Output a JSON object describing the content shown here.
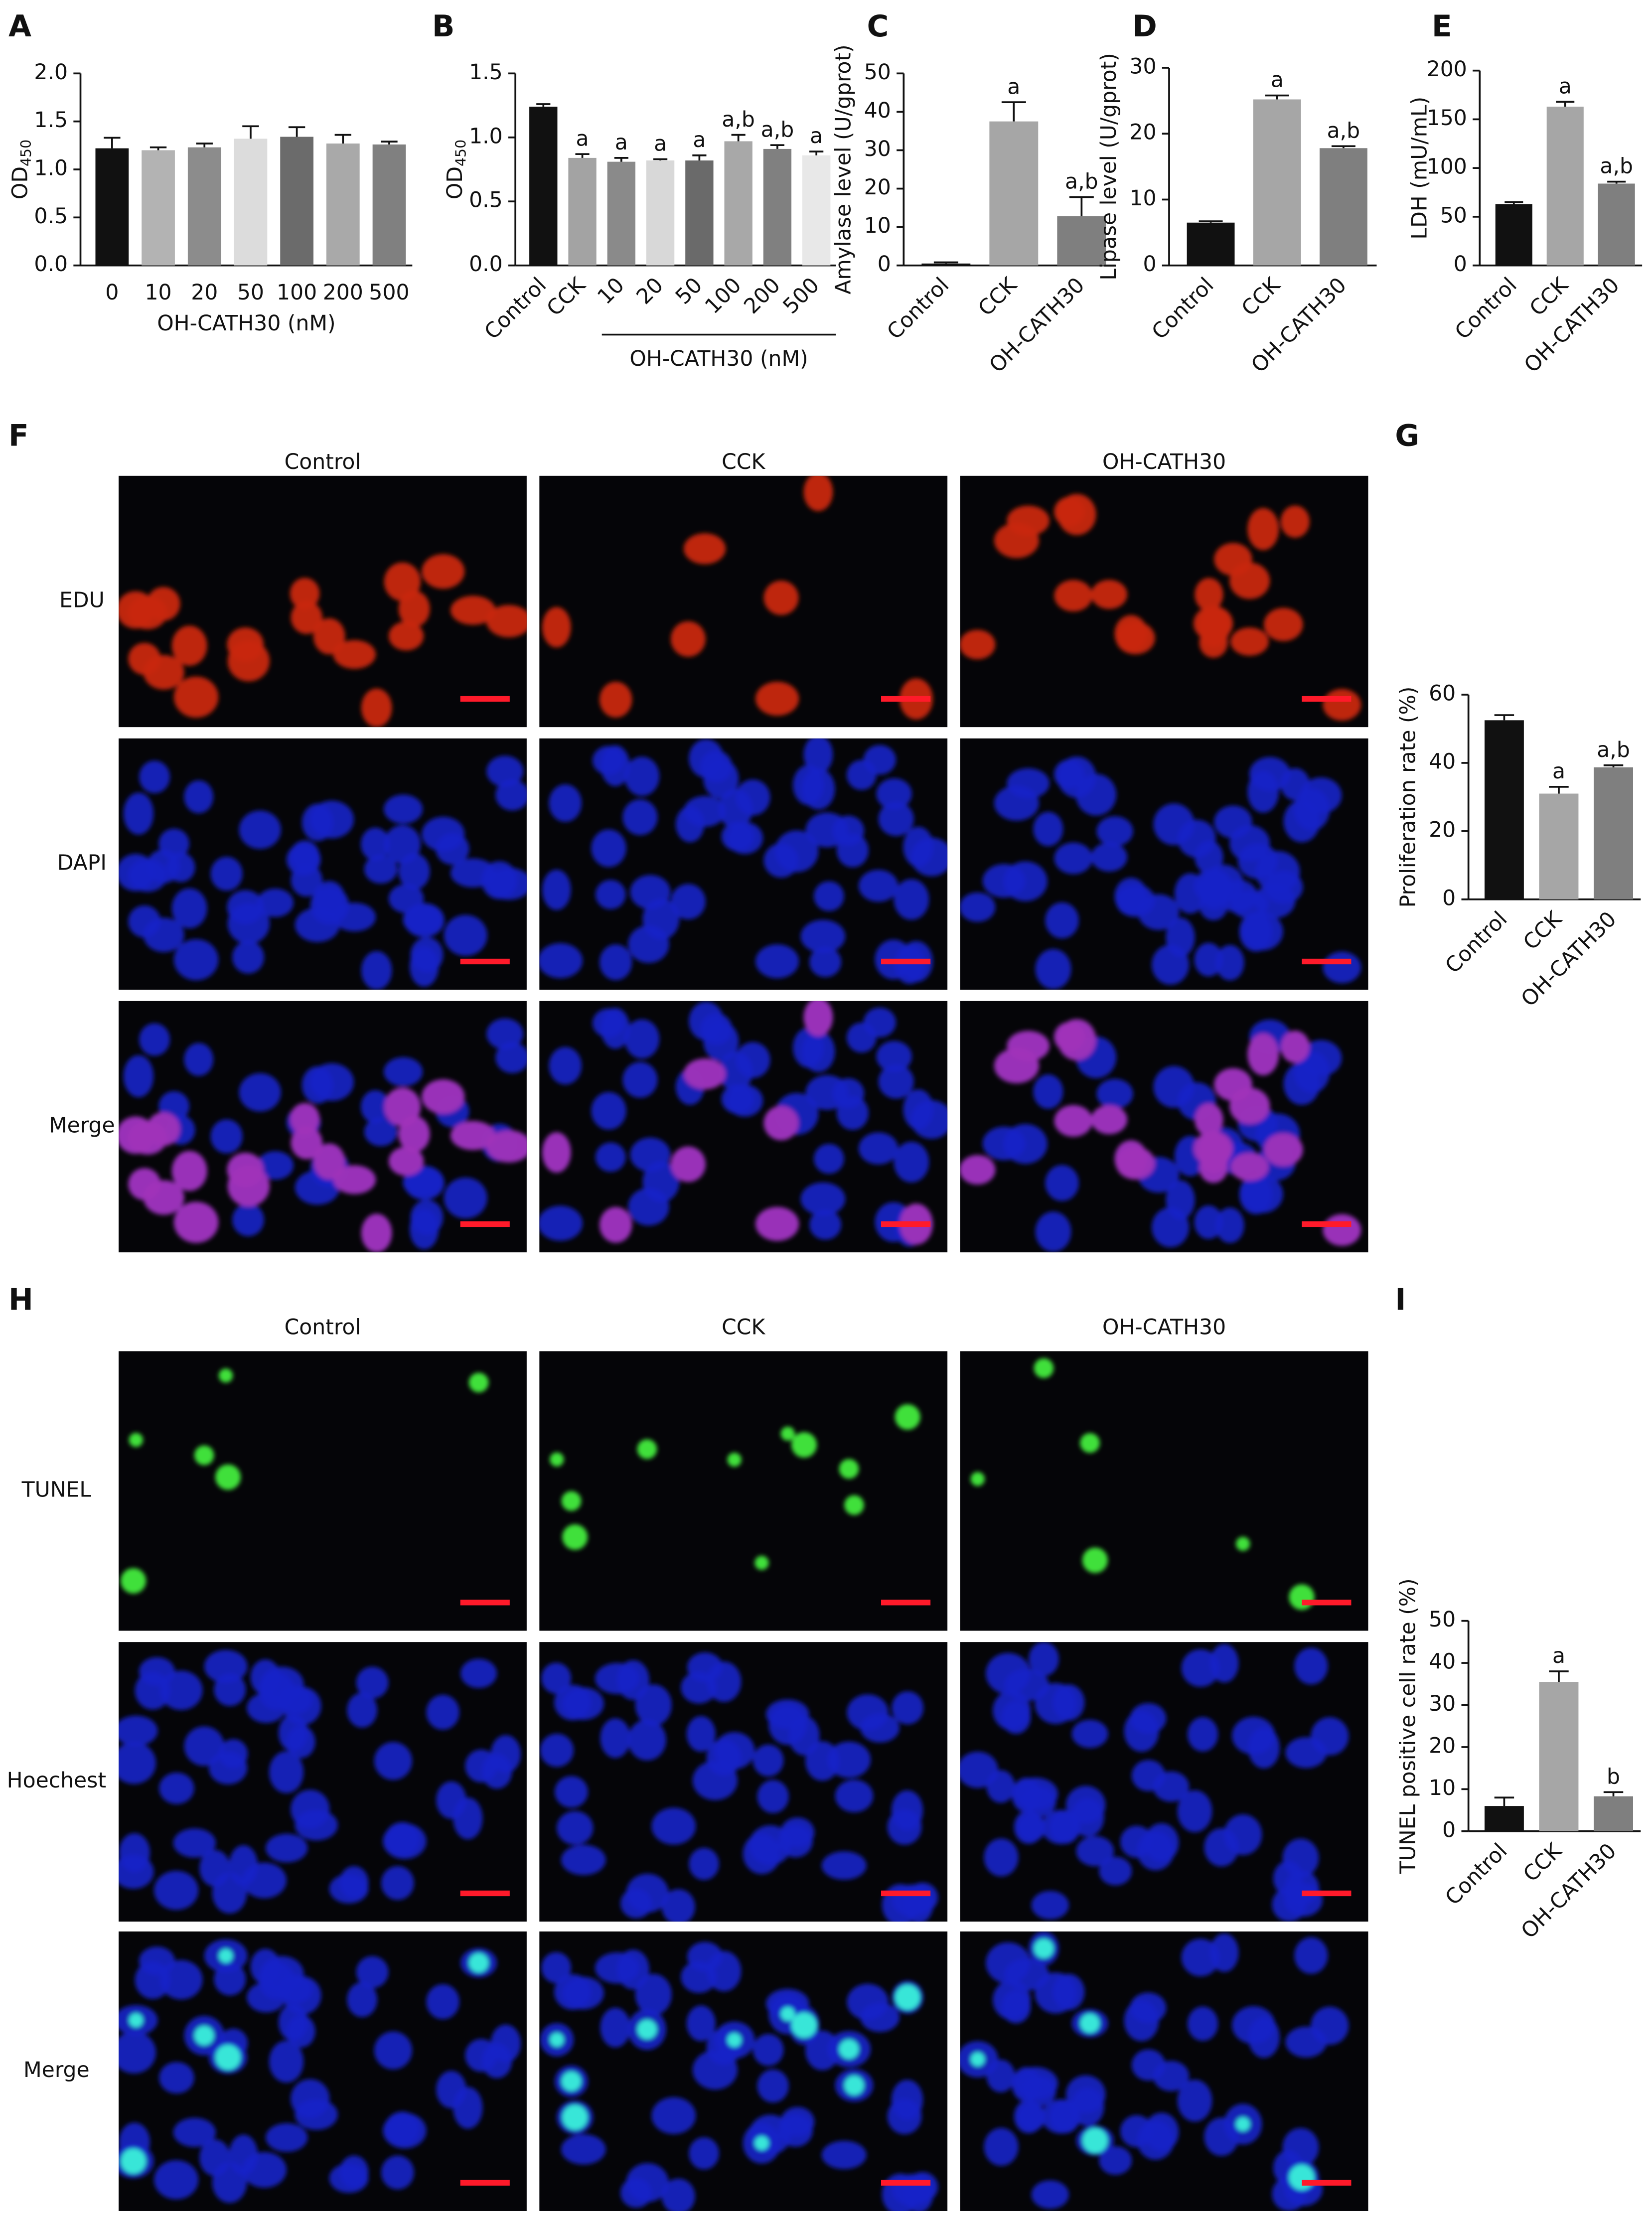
{
  "chart_data": [
    {
      "type": "bar",
      "panel_label": "A",
      "y_label": "OD",
      "y_label_subscript": "450",
      "x_label": "OH-CATH30 (nM)",
      "categories": [
        "0",
        "10",
        "20",
        "50",
        "100",
        "200",
        "500"
      ],
      "values": [
        1.22,
        1.2,
        1.23,
        1.32,
        1.34,
        1.27,
        1.26
      ],
      "errors": [
        0.11,
        0.03,
        0.04,
        0.13,
        0.1,
        0.09,
        0.03
      ],
      "colors": [
        "#111111",
        "#b3b3b3",
        "#8c8c8c",
        "#dcdcdc",
        "#6b6b6b",
        "#a9a9a9",
        "#808080"
      ],
      "ylim": [
        0,
        2
      ],
      "yticks": [
        {
          "value": 0,
          "label": "0.0"
        },
        {
          "value": 0.5,
          "label": "0.5"
        },
        {
          "value": 1,
          "label": "1.0"
        },
        {
          "value": 1.5,
          "label": "1.5"
        },
        {
          "value": 2,
          "label": "2.0"
        }
      ]
    },
    {
      "type": "bar",
      "panel_label": "B",
      "y_label": "OD",
      "y_label_subscript": "450",
      "group_label": "OH-CATH30 (nM)",
      "categories": [
        "Control",
        "CCK",
        "10",
        "20",
        "50",
        "100",
        "200",
        "500"
      ],
      "values": [
        1.24,
        0.84,
        0.81,
        0.82,
        0.82,
        0.97,
        0.91,
        0.86
      ],
      "errors": [
        0.02,
        0.03,
        0.03,
        0.01,
        0.04,
        0.05,
        0.03,
        0.03
      ],
      "annotations": [
        null,
        "a",
        "a",
        "a",
        "a",
        "a,b",
        "a,b",
        "a"
      ],
      "colors": [
        "#111111",
        "#a3a3a3",
        "#8a8a8a",
        "#d8d8d8",
        "#6a6a6a",
        "#a8a8a8",
        "#808080",
        "#e8e8e8"
      ],
      "ylim": [
        0,
        1.5
      ],
      "yticks": [
        {
          "value": 0,
          "label": "0.0"
        },
        {
          "value": 0.5,
          "label": "0.5"
        },
        {
          "value": 1,
          "label": "1.0"
        },
        {
          "value": 1.5,
          "label": "1.5"
        }
      ]
    },
    {
      "type": "bar",
      "panel_label": "C",
      "y_label": "Amylase level (U/gprot)",
      "categories": [
        "Control",
        "CCK",
        "OH-CATH30"
      ],
      "values": [
        0.5,
        37.5,
        12.8
      ],
      "errors": [
        0.3,
        5,
        5
      ],
      "annotations": [
        null,
        "a",
        "a,b"
      ],
      "colors": [
        "#111111",
        "#a6a6a6",
        "#7f7f7f"
      ],
      "ylim": [
        0,
        50
      ],
      "yticks": [
        0,
        10,
        20,
        30,
        40,
        50
      ]
    },
    {
      "type": "bar",
      "panel_label": "D",
      "y_label": "Lipase level (U/gprot)",
      "categories": [
        "Control",
        "CCK",
        "OH-CATH30"
      ],
      "values": [
        6.5,
        25.2,
        17.8
      ],
      "errors": [
        0.2,
        0.6,
        0.3
      ],
      "annotations": [
        null,
        "a",
        "a,b"
      ],
      "colors": [
        "#111111",
        "#a6a6a6",
        "#7f7f7f"
      ],
      "ylim": [
        0,
        30
      ],
      "yticks": [
        0,
        10,
        20,
        30
      ]
    },
    {
      "type": "bar",
      "panel_label": "E",
      "y_label": "LDH (mU/mL)",
      "categories": [
        "Control",
        "CCK",
        "OH-CATH30"
      ],
      "values": [
        63,
        163,
        84
      ],
      "errors": [
        2,
        5,
        2
      ],
      "annotations": [
        null,
        "a",
        "a,b"
      ],
      "colors": [
        "#111111",
        "#a6a6a6",
        "#7f7f7f"
      ],
      "ylim": [
        0,
        200
      ],
      "yticks": [
        0,
        50,
        100,
        150,
        200
      ]
    },
    {
      "type": "bar",
      "panel_label": "G",
      "y_label": "Proliferation rate (%)",
      "categories": [
        "Control",
        "CCK",
        "OH-CATH30"
      ],
      "values": [
        52.5,
        31,
        38.7
      ],
      "errors": [
        1.5,
        2,
        0.6
      ],
      "annotations": [
        null,
        "a",
        "a,b"
      ],
      "colors": [
        "#111111",
        "#a6a6a6",
        "#7f7f7f"
      ],
      "ylim": [
        0,
        60
      ],
      "yticks": [
        0,
        20,
        40,
        60
      ]
    },
    {
      "type": "bar",
      "panel_label": "I",
      "y_label": "TUNEL positive cell rate (%)",
      "categories": [
        "Control",
        "CCK",
        "OH-CATH30"
      ],
      "values": [
        6,
        35.5,
        8.3
      ],
      "errors": [
        2,
        2.5,
        1
      ],
      "annotations": [
        null,
        "a",
        "b"
      ],
      "colors": [
        "#111111",
        "#a6a6a6",
        "#7f7f7f"
      ],
      "ylim": [
        0,
        50
      ],
      "yticks": [
        0,
        10,
        20,
        30,
        40,
        50
      ]
    }
  ],
  "micrographs": [
    {
      "panel_label": "F",
      "columns": [
        "Control",
        "CCK",
        "OH-CATH30"
      ],
      "rows": [
        "EDU",
        "DAPI",
        "Merge"
      ]
    },
    {
      "panel_label": "H",
      "columns": [
        "Control",
        "CCK",
        "OH-CATH30"
      ],
      "rows": [
        "TUNEL",
        "Hoechest",
        "Merge"
      ]
    }
  ]
}
